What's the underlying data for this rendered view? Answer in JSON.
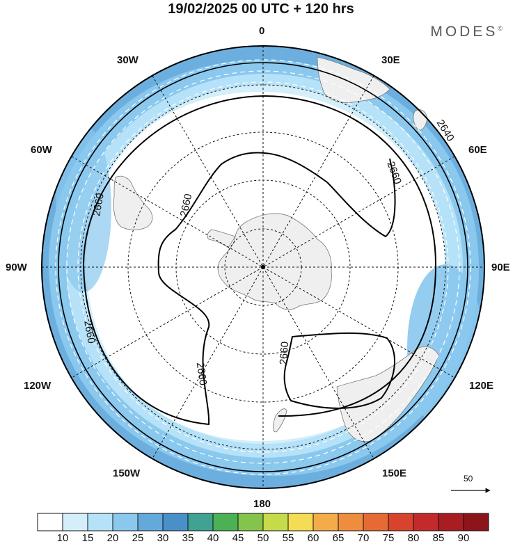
{
  "header": {
    "title": "19/02/2025  00 UTC  + 120 hrs",
    "brand": "MODES",
    "brand_mark": "©"
  },
  "longitude_labels": {
    "top": "0",
    "bottom": "180",
    "left": "90W",
    "right": "90E",
    "w30": "30W",
    "w60": "60W",
    "w120": "120W",
    "w150": "150W",
    "e30": "30E",
    "e60": "60E",
    "e120": "120E",
    "e150": "150E"
  },
  "contours": {
    "c2660": "2660",
    "c2640": "2640"
  },
  "reference_vector": {
    "label": "50"
  },
  "colorbar": {
    "labels": [
      "10",
      "15",
      "20",
      "25",
      "30",
      "35",
      "40",
      "45",
      "50",
      "55",
      "60",
      "65",
      "70",
      "75",
      "80",
      "85",
      "90"
    ],
    "colors": [
      "#ffffff",
      "#d4eefa",
      "#b5e2f8",
      "#8ac8ee",
      "#64a9db",
      "#4a90c8",
      "#3fa292",
      "#4cb155",
      "#84c34c",
      "#c7da4a",
      "#f4dc55",
      "#f3ac48",
      "#ee8d3e",
      "#e66a33",
      "#d7432d",
      "#c42a2b",
      "#a71d22",
      "#8b151b"
    ]
  }
}
